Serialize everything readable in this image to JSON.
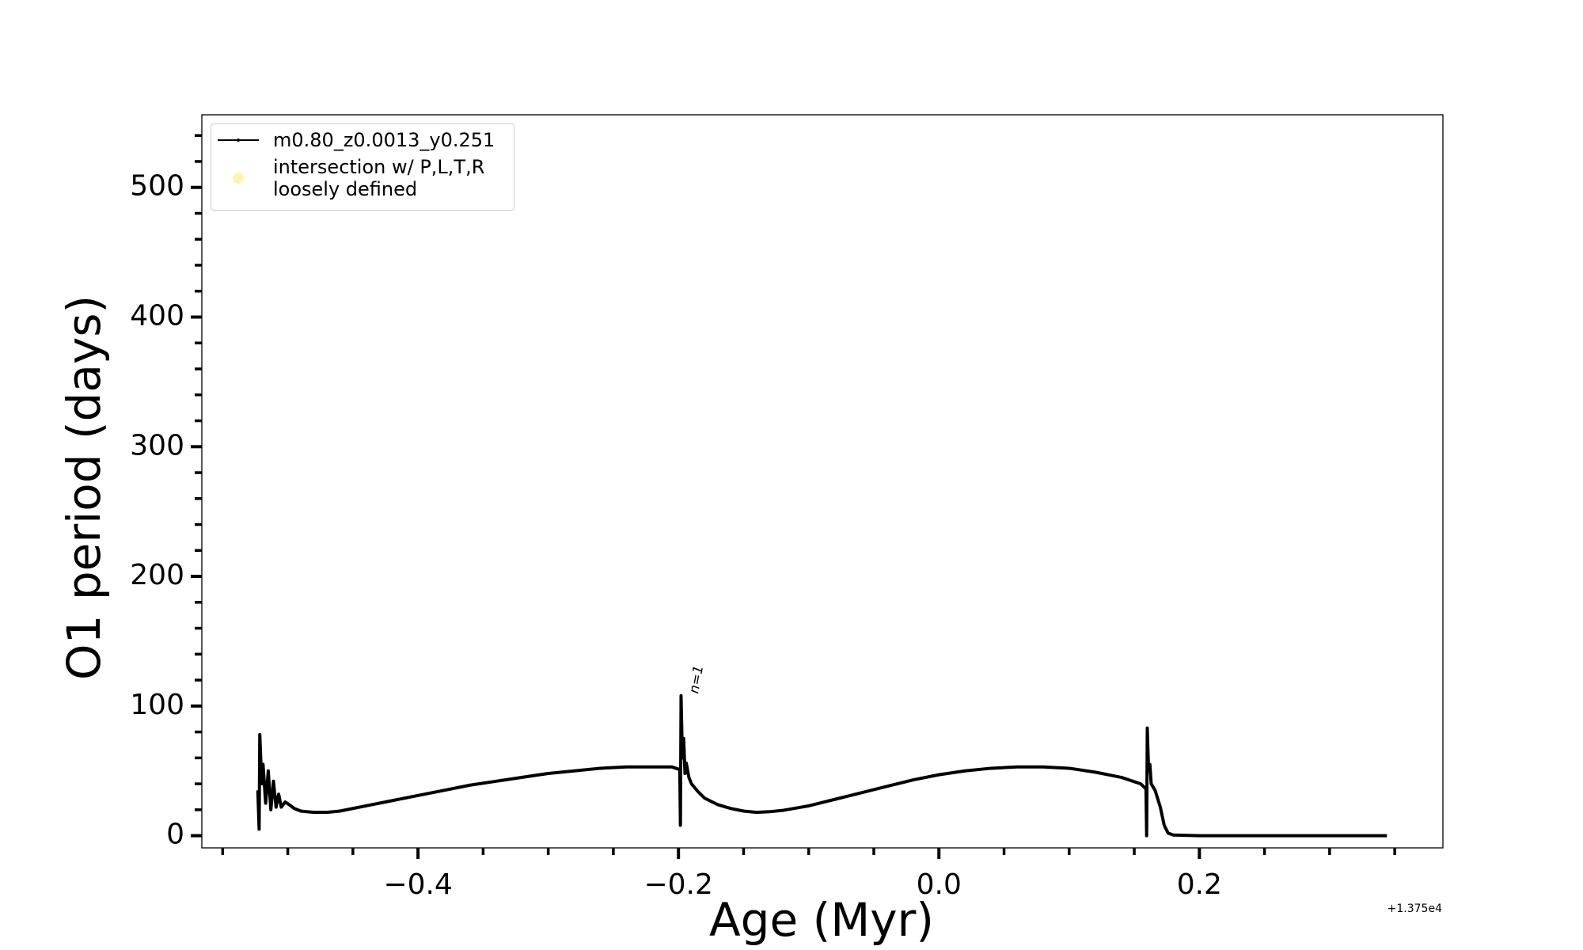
{
  "chart_data": {
    "type": "line",
    "xlabel": "Age (Myr)",
    "ylabel": "O1 period (days)",
    "x_offset_label": "+1.375e4",
    "xlim": [
      -0.566,
      0.387
    ],
    "ylim": [
      -9.4,
      556
    ],
    "xticks": [
      {
        "value": -0.4,
        "label": "−0.4"
      },
      {
        "value": -0.2,
        "label": "−0.2"
      },
      {
        "value": 0.0,
        "label": "0.0"
      },
      {
        "value": 0.2,
        "label": "0.2"
      }
    ],
    "xticks_minor": [
      -0.55,
      -0.5,
      -0.45,
      -0.35,
      -0.3,
      -0.25,
      -0.15,
      -0.1,
      -0.05,
      0.05,
      0.1,
      0.15,
      0.25,
      0.3,
      0.35
    ],
    "yticks": [
      0,
      100,
      200,
      300,
      400,
      500
    ],
    "yticks_minor": [
      20,
      40,
      60,
      80,
      120,
      140,
      160,
      180,
      220,
      240,
      260,
      280,
      320,
      340,
      360,
      380,
      420,
      440,
      460,
      480,
      520,
      540
    ],
    "legend": "upper left",
    "annotations": [
      {
        "text": "n=1",
        "x": -0.194,
        "y": 106
      }
    ],
    "series": [
      {
        "name": "m0.80_z0.0013_y0.251",
        "color": "#000000",
        "x": [
          -0.523,
          -0.522,
          -0.5215,
          -0.52,
          -0.519,
          -0.517,
          -0.515,
          -0.513,
          -0.511,
          -0.509,
          -0.507,
          -0.505,
          -0.502,
          -0.499,
          -0.495,
          -0.49,
          -0.48,
          -0.47,
          -0.46,
          -0.44,
          -0.42,
          -0.4,
          -0.38,
          -0.36,
          -0.34,
          -0.32,
          -0.3,
          -0.28,
          -0.26,
          -0.24,
          -0.22,
          -0.205,
          -0.199,
          -0.1985,
          -0.198,
          -0.197,
          -0.196,
          -0.195,
          -0.194,
          -0.192,
          -0.19,
          -0.185,
          -0.18,
          -0.17,
          -0.16,
          -0.15,
          -0.14,
          -0.13,
          -0.12,
          -0.1,
          -0.08,
          -0.06,
          -0.04,
          -0.02,
          0.0,
          0.02,
          0.04,
          0.06,
          0.08,
          0.1,
          0.12,
          0.14,
          0.155,
          0.159,
          0.1595,
          0.16,
          0.161,
          0.162,
          0.163,
          0.166,
          0.17,
          0.173,
          0.176,
          0.18,
          0.2,
          0.25,
          0.3,
          0.344
        ],
        "values": [
          35,
          5,
          78,
          40,
          55,
          25,
          50,
          20,
          42,
          22,
          32,
          22,
          26,
          24,
          21,
          19,
          18,
          18,
          19,
          23,
          27,
          31,
          35,
          39,
          42,
          45,
          48,
          50,
          52,
          53,
          53,
          53,
          51,
          8,
          108,
          60,
          75,
          48,
          56,
          45,
          40,
          34,
          29,
          24,
          21,
          19,
          18,
          18.5,
          19.5,
          23,
          28,
          33,
          38,
          43,
          47,
          50,
          52,
          53,
          53,
          52,
          49,
          45,
          40,
          36,
          0,
          83,
          50,
          55,
          40,
          35,
          22,
          8,
          2,
          0.5,
          0,
          0,
          0,
          0
        ]
      },
      {
        "name": "intersection w/ P,L,T,R\nloosely defined",
        "color": "#fff5b0",
        "x": [],
        "values": []
      }
    ]
  }
}
